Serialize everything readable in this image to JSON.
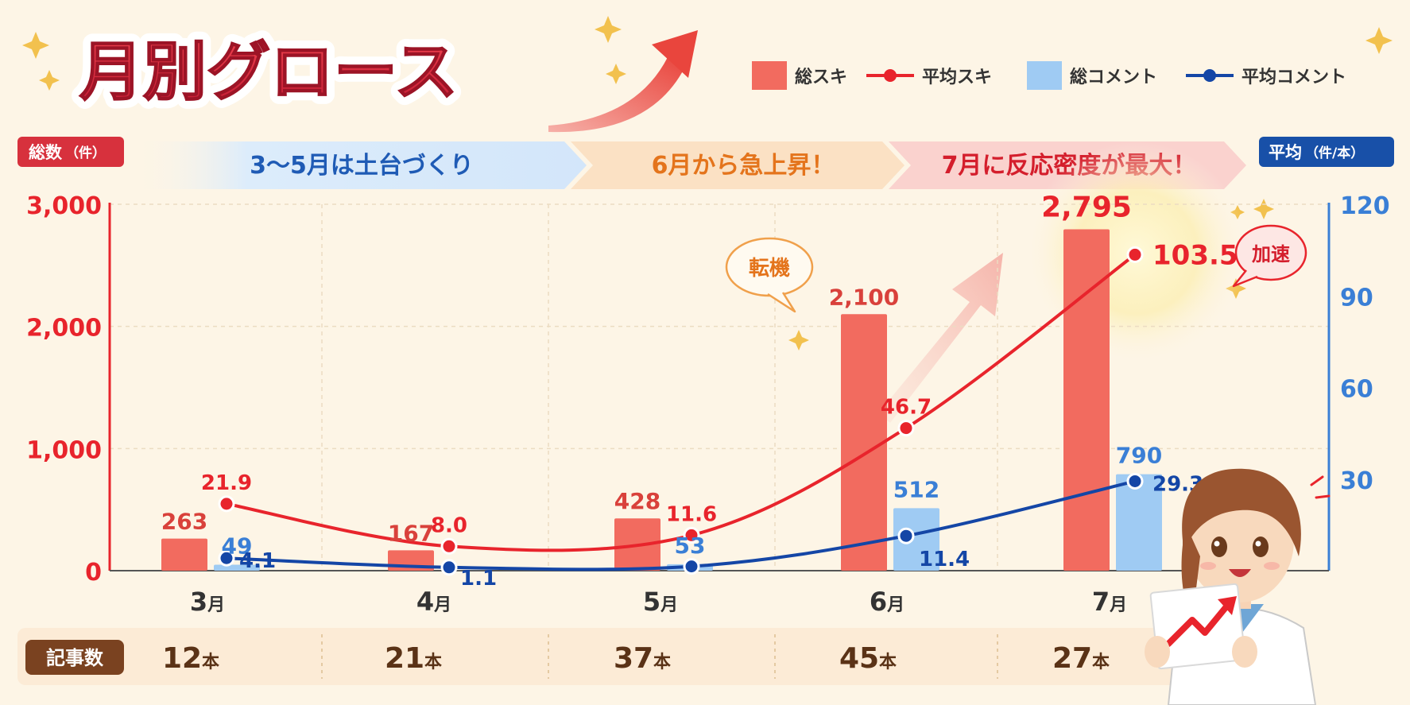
{
  "title": "月別グロース",
  "legend": [
    {
      "label": "総スキ",
      "kind": "bar",
      "color": "#f26b5f"
    },
    {
      "label": "平均スキ",
      "kind": "line",
      "color": "#e8242c"
    },
    {
      "label": "総コメント",
      "kind": "bar",
      "color": "#9fcbf3"
    },
    {
      "label": "平均コメント",
      "kind": "line",
      "color": "#1446a6"
    }
  ],
  "left_axis_badge": "総数",
  "left_axis_unit": "（件）",
  "right_axis_badge": "平均",
  "right_axis_unit": "（件/本）",
  "phases": [
    "3～5月は土台づくり",
    "6月から急上昇！",
    "7月に反応密度が最大！"
  ],
  "callouts": {
    "turning_point": "転機",
    "acceleration": "加速"
  },
  "articles": {
    "label": "記事数",
    "unit": "本",
    "values": [
      "12",
      "21",
      "37",
      "45",
      "27"
    ]
  },
  "chart_data": {
    "type": "bar",
    "categories": [
      "3月",
      "4月",
      "5月",
      "6月",
      "7月"
    ],
    "y_left": {
      "min": 0,
      "max": 3000,
      "ticks": [
        "0",
        "1,000",
        "2,000",
        "3,000"
      ]
    },
    "y_right": {
      "min": 0,
      "max": 120,
      "ticks": [
        "30",
        "60",
        "90",
        "120"
      ]
    },
    "grid": true,
    "legend_position": "top-right",
    "series": [
      {
        "name": "総スキ",
        "type": "bar",
        "axis": "left",
        "values": [
          263,
          167,
          428,
          2100,
          2795
        ],
        "labels": [
          "263",
          "167",
          "428",
          "2,100",
          "2,795"
        ],
        "color": "#f26b5f"
      },
      {
        "name": "総コメント",
        "type": "bar",
        "axis": "left",
        "values": [
          49,
          1,
          53,
          512,
          790
        ],
        "labels": [
          "49",
          "",
          "53",
          "512",
          "790"
        ],
        "color": "#9fcbf3"
      },
      {
        "name": "平均スキ",
        "type": "line",
        "axis": "right",
        "values": [
          21.9,
          8.0,
          11.6,
          46.7,
          103.5
        ],
        "labels": [
          "21.9",
          "8.0",
          "11.6",
          "46.7",
          "103.5"
        ],
        "color": "#e8242c"
      },
      {
        "name": "平均コメント",
        "type": "line",
        "axis": "right",
        "values": [
          4.1,
          1.1,
          1.4,
          11.4,
          29.3
        ],
        "labels": [
          "4.1",
          "1.1",
          "",
          "11.4",
          "29.3"
        ],
        "color": "#1446a6"
      }
    ]
  }
}
